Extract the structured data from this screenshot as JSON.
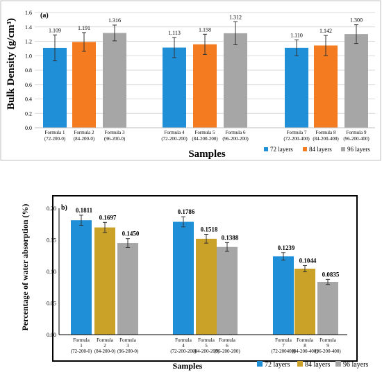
{
  "chart_data": [
    {
      "type": "bar",
      "panel_label": "(a)",
      "ylabel": "Bulk Density (g/cm³)",
      "xlabel": "Samples",
      "ylim": [
        0,
        1.6
      ],
      "yticks": [
        "0.0",
        "0.2",
        "0.4",
        "0.6",
        "0.8",
        "1.0",
        "1.2",
        "1.4",
        "1.6"
      ],
      "grid": true,
      "legend_position": "bottom-right",
      "categories": [
        [
          "Formula 1",
          "(72-200-0)"
        ],
        [
          "Formula 2",
          "(84-200-0)"
        ],
        [
          "Formula 3",
          "(96-200-0)"
        ],
        [
          "Formula 4",
          "(72-200-200)"
        ],
        [
          "Formula 5",
          "(84-200-200)"
        ],
        [
          "Formula 6",
          "(96-200-200)"
        ],
        [
          "Formula 7",
          "(72-200-400)"
        ],
        [
          "Formula 8",
          "(84-200-400)"
        ],
        [
          "Formula 9",
          "(96-200-400)"
        ]
      ],
      "values": [
        1.109,
        1.191,
        1.316,
        1.113,
        1.158,
        1.312,
        1.11,
        1.142,
        1.3
      ],
      "value_labels": [
        "1.109",
        "1.191",
        "1.316",
        "1.113",
        "1.158",
        "1.312",
        "1.110",
        "1.142",
        "1.300"
      ],
      "errors": [
        0.18,
        0.13,
        0.11,
        0.14,
        0.14,
        0.16,
        0.11,
        0.14,
        0.13
      ],
      "series_index": [
        0,
        1,
        2,
        0,
        1,
        2,
        0,
        1,
        2
      ],
      "series": [
        {
          "name": "72 layers",
          "color": "#1f8fd8"
        },
        {
          "name": "84 layers",
          "color": "#f47b20"
        },
        {
          "name": "96 layers",
          "color": "#a6a6a6"
        }
      ]
    },
    {
      "type": "bar",
      "panel_label": "b)",
      "ylabel": "Percentage of water absorption (%)",
      "xlabel": "Samples",
      "ylim": [
        0,
        0.2
      ],
      "yticks": [
        "0.00",
        "0.05",
        "0.10",
        "0.15",
        "0.20"
      ],
      "grid": false,
      "legend_position": "bottom-right",
      "categories": [
        [
          "Formula",
          "1",
          "(72-200-0)"
        ],
        [
          "Formula",
          "2",
          "(84-200-0)"
        ],
        [
          "Formula",
          "3",
          "(96-200-0)"
        ],
        [
          "Formula",
          "4",
          "(72-200-200)"
        ],
        [
          "Formula",
          "5",
          "(84-200-200)"
        ],
        [
          "Formula",
          "6",
          "(96-200-200)"
        ],
        [
          "Formula",
          "7",
          "(72-200400)"
        ],
        [
          "Formula",
          "8",
          "(84-200-400)"
        ],
        [
          "Formula",
          "9",
          "(96-200-400)"
        ]
      ],
      "values": [
        0.1811,
        0.1697,
        0.145,
        0.1786,
        0.1518,
        0.1388,
        0.1239,
        0.1044,
        0.0835
      ],
      "value_labels": [
        "0.1811",
        "0.1697",
        "0.1450",
        "0.1786",
        "0.1518",
        "0.1388",
        "0.1239",
        "0.1044",
        "0.0835"
      ],
      "errors": [
        0.008,
        0.008,
        0.007,
        0.008,
        0.007,
        0.007,
        0.006,
        0.005,
        0.004
      ],
      "series_index": [
        0,
        1,
        2,
        0,
        1,
        2,
        0,
        1,
        2
      ],
      "series": [
        {
          "name": "72 layers",
          "color": "#1f8fd8"
        },
        {
          "name": "84 layers",
          "color": "#c9a227"
        },
        {
          "name": "96 layers",
          "color": "#a6a6a6"
        }
      ]
    }
  ]
}
